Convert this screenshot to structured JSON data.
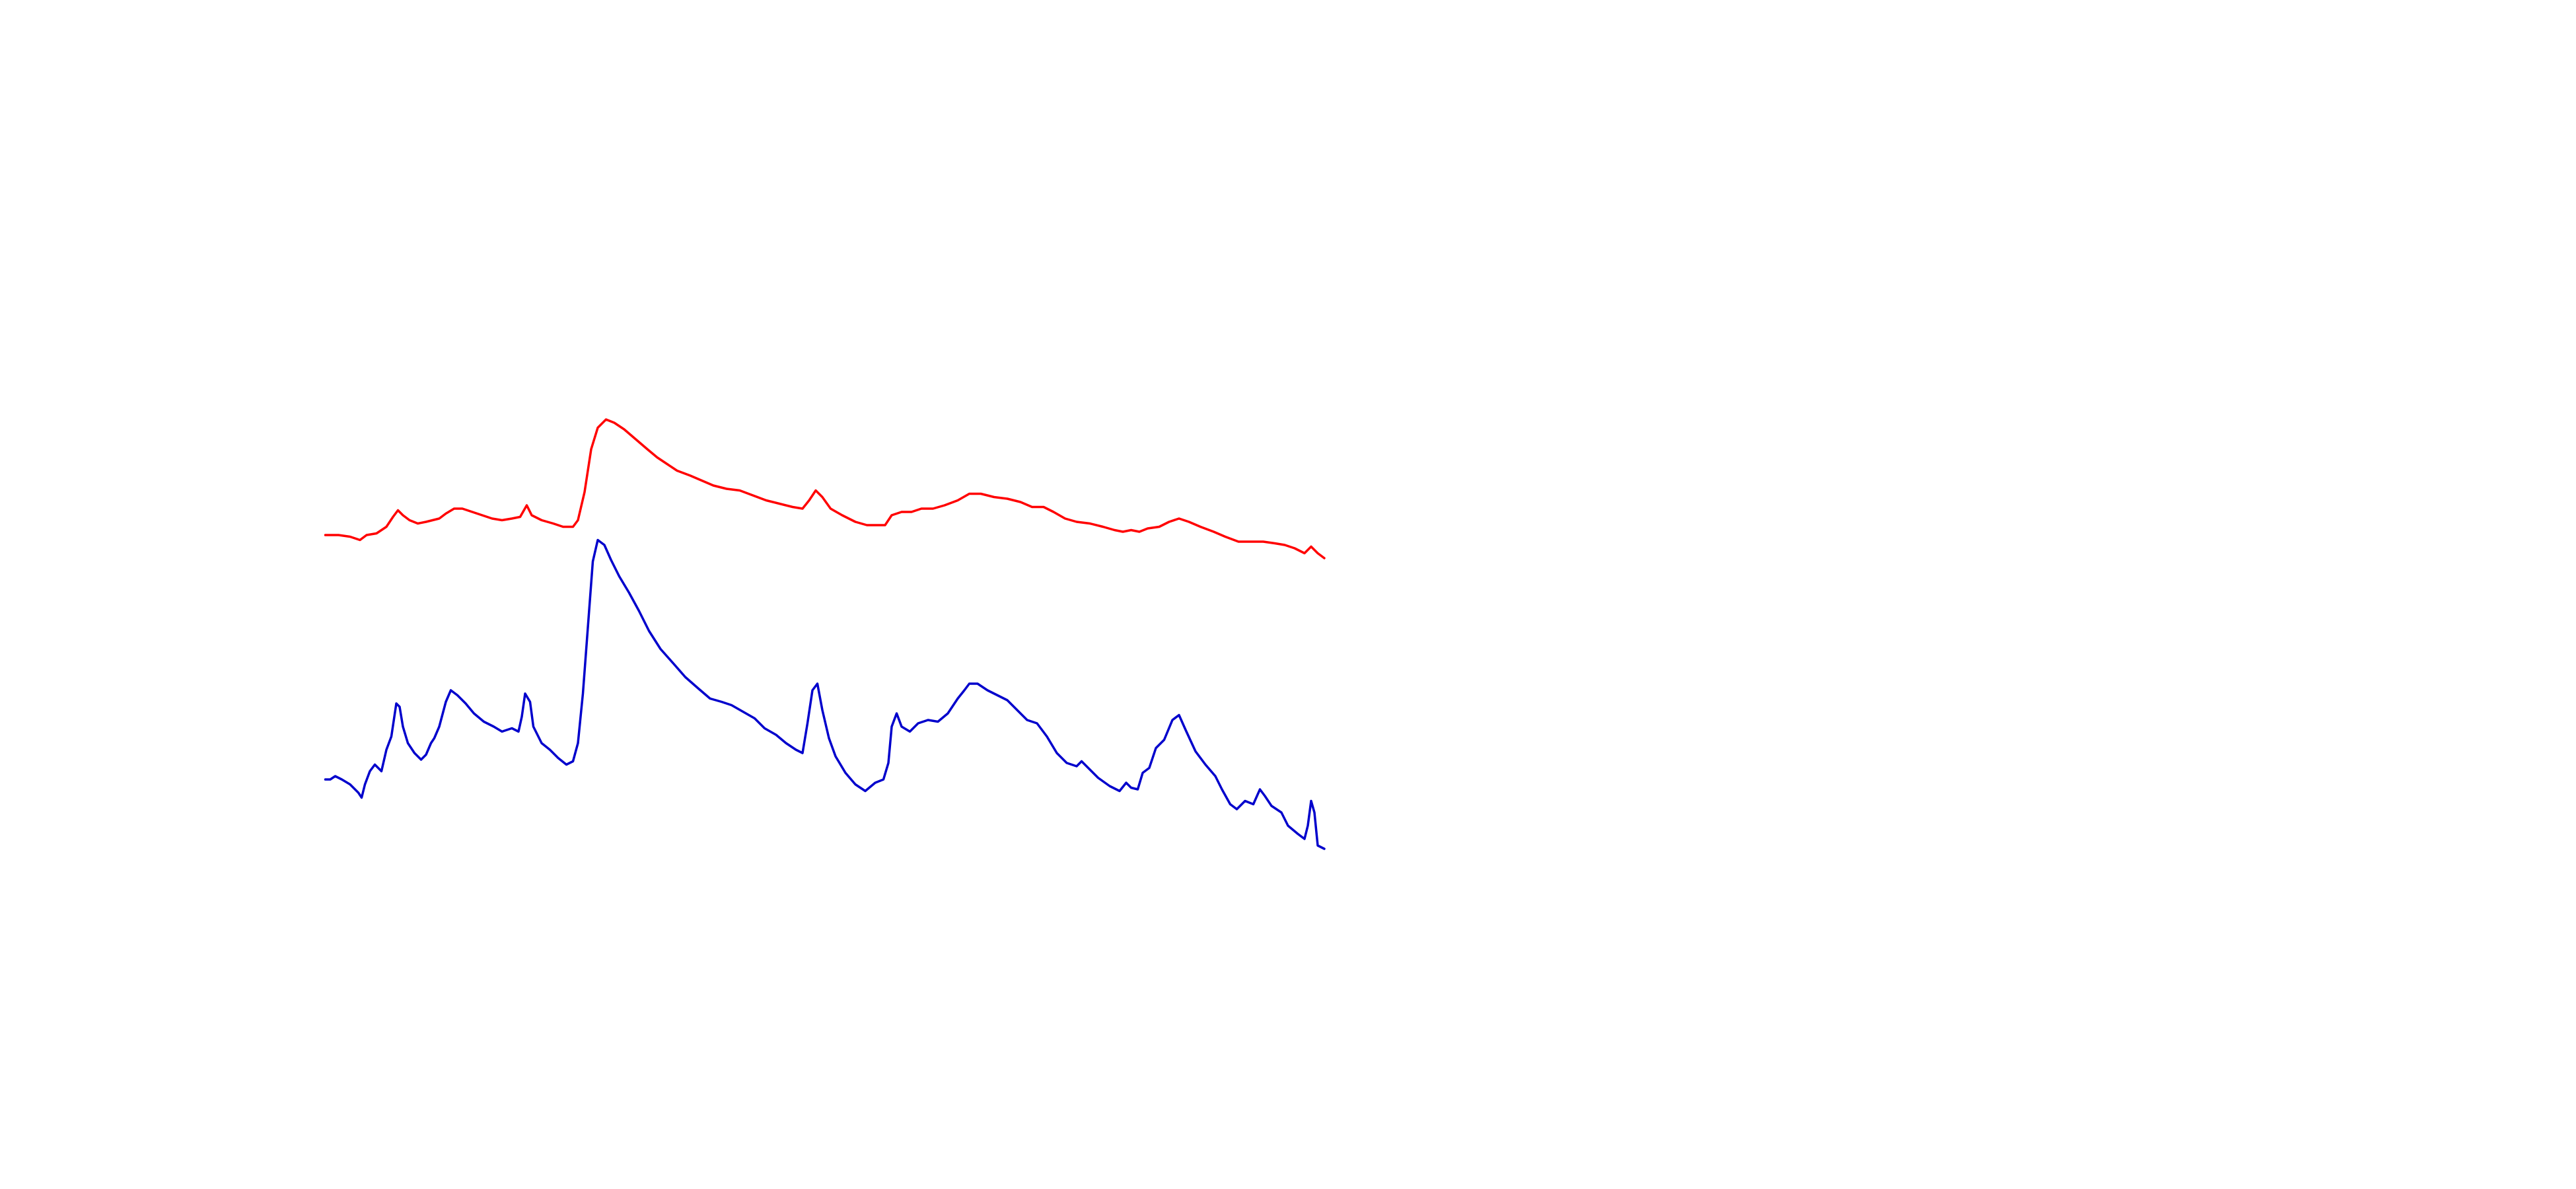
{
  "chart_data": {
    "type": "line",
    "xlim": [
      0,
      1560
    ],
    "ylim": [
      0,
      720
    ],
    "series": [
      {
        "color": "#ff0000",
        "x": [
          197,
          205,
          212,
          218,
          222,
          228,
          234,
          238,
          241,
          244,
          248,
          253,
          258,
          262,
          266,
          270,
          275,
          280,
          286,
          292,
          298,
          304,
          310,
          315,
          319,
          322,
          328,
          335,
          341,
          347,
          350,
          354,
          358,
          362,
          367,
          372,
          378,
          385,
          392,
          398,
          404,
          410,
          418,
          425,
          432,
          440,
          448,
          456,
          464,
          472,
          480,
          486,
          490,
          494,
          498,
          503,
          510,
          518,
          525,
          531,
          536,
          540,
          546,
          552,
          558,
          565,
          572,
          580,
          587,
          594,
          602,
          610,
          618,
          625,
          632,
          638,
          645,
          652,
          660,
          668,
          675,
          680,
          685,
          690,
          695,
          702,
          708,
          714,
          720,
          727,
          735,
          742,
          750,
          758,
          765,
          772,
          778,
          784,
          790,
          794,
          798,
          802
        ],
        "values": [
          396,
          396,
          395,
          393,
          396,
          397,
          401,
          407,
          411,
          408,
          405,
          403,
          404,
          405,
          406,
          409,
          412,
          412,
          410,
          408,
          406,
          405,
          406,
          407,
          414,
          408,
          405,
          403,
          401,
          401,
          405,
          422,
          448,
          461,
          466,
          464,
          460,
          454,
          448,
          443,
          439,
          435,
          432,
          429,
          426,
          424,
          423,
          420,
          417,
          415,
          413,
          412,
          417,
          423,
          419,
          412,
          408,
          404,
          402,
          402,
          402,
          408,
          410,
          410,
          412,
          412,
          414,
          417,
          421,
          421,
          419,
          418,
          416,
          413,
          413,
          410,
          406,
          404,
          403,
          401,
          399,
          398,
          399,
          398,
          400,
          401,
          404,
          406,
          404,
          401,
          398,
          395,
          392,
          392,
          392,
          391,
          390,
          388,
          385,
          389,
          385,
          382
        ]
      },
      {
        "color": "#0000cc",
        "x": [
          197,
          200,
          203,
          207,
          212,
          217,
          219,
          221,
          224,
          227,
          231,
          234,
          237,
          240,
          242,
          244,
          247,
          251,
          255,
          258,
          261,
          263,
          266,
          270,
          273,
          277,
          282,
          287,
          293,
          299,
          304,
          310,
          314,
          316,
          318,
          321,
          323,
          328,
          333,
          338,
          343,
          347,
          350,
          353,
          356,
          359,
          362,
          366,
          370,
          375,
          381,
          387,
          393,
          400,
          408,
          415,
          423,
          430,
          437,
          443,
          450,
          457,
          463,
          470,
          476,
          482,
          486,
          489,
          492,
          495,
          498,
          502,
          506,
          512,
          518,
          524,
          530,
          535,
          538,
          540,
          543,
          546,
          551,
          556,
          562,
          568,
          574,
          580,
          584,
          587,
          592,
          598,
          604,
          610,
          616,
          622,
          628,
          634,
          640,
          646,
          652,
          655,
          660,
          665,
          672,
          678,
          682,
          685,
          689,
          692,
          696,
          700,
          705,
          710,
          714,
          718,
          724,
          730,
          736,
          740,
          745,
          749,
          754,
          759,
          763,
          766,
          770,
          776,
          780,
          786,
          790,
          792,
          794,
          796,
          798,
          802
        ],
        "values": [
          248,
          248,
          250,
          248,
          245,
          240,
          237,
          245,
          253,
          257,
          253,
          266,
          274,
          294,
          292,
          280,
          270,
          264,
          260,
          263,
          270,
          273,
          280,
          295,
          302,
          299,
          294,
          288,
          283,
          280,
          277,
          279,
          277,
          286,
          300,
          295,
          280,
          270,
          266,
          261,
          257,
          259,
          270,
          300,
          340,
          380,
          393,
          390,
          381,
          371,
          361,
          350,
          338,
          327,
          318,
          310,
          303,
          297,
          295,
          293,
          289,
          285,
          279,
          275,
          270,
          266,
          264,
          282,
          302,
          306,
          290,
          273,
          262,
          252,
          245,
          241,
          246,
          248,
          258,
          280,
          288,
          280,
          277,
          282,
          284,
          283,
          288,
          297,
          302,
          306,
          306,
          302,
          299,
          296,
          290,
          284,
          282,
          274,
          264,
          258,
          256,
          259,
          254,
          249,
          244,
          241,
          246,
          243,
          242,
          252,
          255,
          267,
          272,
          284,
          287,
          278,
          265,
          257,
          250,
          242,
          233,
          230,
          235,
          233,
          242,
          238,
          232,
          228,
          220,
          215,
          212,
          220,
          235,
          228,
          208,
          206
        ]
      }
    ]
  }
}
